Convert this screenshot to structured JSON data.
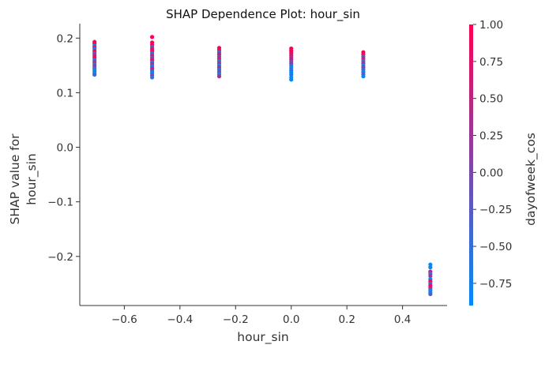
{
  "chart_data": {
    "type": "scatter",
    "title": "SHAP Dependence Plot: hour_sin",
    "xlabel": "hour_sin",
    "ylabel_lines": [
      "SHAP value for",
      "hour_sin"
    ],
    "xlim": [
      -0.76,
      0.56
    ],
    "ylim": [
      -0.29,
      0.225
    ],
    "x_ticks": [
      -0.6,
      -0.4,
      -0.2,
      0.0,
      0.2,
      0.4
    ],
    "x_tick_labels": [
      "−0.6",
      "−0.4",
      "−0.2",
      "0.0",
      "0.2",
      "0.4"
    ],
    "y_ticks": [
      0.2,
      0.1,
      0.0,
      -0.1,
      -0.2
    ],
    "y_tick_labels": [
      "0.2",
      "0.1",
      "0.0",
      "−0.1",
      "−0.2"
    ],
    "grid": false,
    "legend": "none",
    "colorbar": {
      "label": "dayofweek_cos",
      "range": [
        -0.9,
        1.0
      ],
      "ticks": [
        1.0,
        0.75,
        0.5,
        0.25,
        0.0,
        -0.25,
        -0.5,
        -0.75
      ],
      "tick_labels": [
        "1.00",
        "0.75",
        "0.50",
        "0.25",
        "0.00",
        "−0.25",
        "−0.50",
        "−0.75"
      ],
      "colormap": [
        "#008bfb",
        "#ff0052"
      ]
    },
    "point_groups": [
      {
        "x": -0.707,
        "points": [
          {
            "y": 0.193,
            "c": 1.0
          },
          {
            "y": 0.19,
            "c": 0.95
          },
          {
            "y": 0.186,
            "c": -0.85
          },
          {
            "y": 0.183,
            "c": 0.8
          },
          {
            "y": 0.18,
            "c": -0.7
          },
          {
            "y": 0.176,
            "c": 0.95
          },
          {
            "y": 0.172,
            "c": -0.2
          },
          {
            "y": 0.168,
            "c": 0.6
          },
          {
            "y": 0.164,
            "c": 0.9
          },
          {
            "y": 0.16,
            "c": -0.55
          },
          {
            "y": 0.156,
            "c": 0.3
          },
          {
            "y": 0.152,
            "c": -0.4
          },
          {
            "y": 0.148,
            "c": 0.1
          },
          {
            "y": 0.144,
            "c": -0.6
          },
          {
            "y": 0.14,
            "c": -0.75
          },
          {
            "y": 0.136,
            "c": -0.85
          },
          {
            "y": 0.133,
            "c": -0.45
          }
        ]
      },
      {
        "x": -0.5,
        "points": [
          {
            "y": 0.202,
            "c": 1.0
          },
          {
            "y": 0.192,
            "c": 0.9
          },
          {
            "y": 0.188,
            "c": 0.95
          },
          {
            "y": 0.184,
            "c": -0.3
          },
          {
            "y": 0.18,
            "c": 0.7
          },
          {
            "y": 0.176,
            "c": 0.85
          },
          {
            "y": 0.172,
            "c": -0.6
          },
          {
            "y": 0.168,
            "c": 0.5
          },
          {
            "y": 0.164,
            "c": -0.1
          },
          {
            "y": 0.16,
            "c": 0.9
          },
          {
            "y": 0.156,
            "c": -0.45
          },
          {
            "y": 0.152,
            "c": 0.25
          },
          {
            "y": 0.148,
            "c": -0.7
          },
          {
            "y": 0.144,
            "c": 0.6
          },
          {
            "y": 0.14,
            "c": -0.25
          },
          {
            "y": 0.136,
            "c": -0.85
          },
          {
            "y": 0.132,
            "c": 0.0
          },
          {
            "y": 0.128,
            "c": -0.5
          }
        ]
      },
      {
        "x": -0.259,
        "points": [
          {
            "y": 0.182,
            "c": 1.0
          },
          {
            "y": 0.178,
            "c": 0.9
          },
          {
            "y": 0.174,
            "c": -0.35
          },
          {
            "y": 0.17,
            "c": 0.75
          },
          {
            "y": 0.166,
            "c": -0.1
          },
          {
            "y": 0.162,
            "c": 0.55
          },
          {
            "y": 0.158,
            "c": -0.65
          },
          {
            "y": 0.154,
            "c": 0.2
          },
          {
            "y": 0.15,
            "c": -0.8
          },
          {
            "y": 0.146,
            "c": 0.45
          },
          {
            "y": 0.142,
            "c": -0.45
          },
          {
            "y": 0.138,
            "c": -0.2
          },
          {
            "y": 0.134,
            "c": -0.7
          },
          {
            "y": 0.13,
            "c": 0.3
          }
        ]
      },
      {
        "x": 0.0,
        "points": [
          {
            "y": 0.181,
            "c": 1.0
          },
          {
            "y": 0.177,
            "c": 0.85
          },
          {
            "y": 0.173,
            "c": 0.95
          },
          {
            "y": 0.169,
            "c": 0.6
          },
          {
            "y": 0.165,
            "c": 0.3
          },
          {
            "y": 0.161,
            "c": 0.75
          },
          {
            "y": 0.157,
            "c": -0.15
          },
          {
            "y": 0.153,
            "c": 0.1
          },
          {
            "y": 0.149,
            "c": -0.6
          },
          {
            "y": 0.145,
            "c": -0.8
          },
          {
            "y": 0.141,
            "c": -0.5
          },
          {
            "y": 0.137,
            "c": -0.85
          },
          {
            "y": 0.133,
            "c": -0.7
          },
          {
            "y": 0.128,
            "c": -0.85
          },
          {
            "y": 0.124,
            "c": -0.9
          }
        ]
      },
      {
        "x": 0.259,
        "points": [
          {
            "y": 0.174,
            "c": 1.0
          },
          {
            "y": 0.17,
            "c": 0.85
          },
          {
            "y": 0.166,
            "c": -0.2
          },
          {
            "y": 0.162,
            "c": 0.6
          },
          {
            "y": 0.158,
            "c": -0.55
          },
          {
            "y": 0.154,
            "c": 0.35
          },
          {
            "y": 0.15,
            "c": -0.75
          },
          {
            "y": 0.146,
            "c": 0.1
          },
          {
            "y": 0.142,
            "c": -0.4
          },
          {
            "y": 0.138,
            "c": -0.85
          },
          {
            "y": 0.134,
            "c": -0.3
          },
          {
            "y": 0.13,
            "c": -0.8
          }
        ]
      },
      {
        "x": 0.5,
        "points": [
          {
            "y": -0.215,
            "c": -0.9
          },
          {
            "y": -0.22,
            "c": -0.8
          },
          {
            "y": -0.228,
            "c": 0.6
          },
          {
            "y": -0.232,
            "c": -0.5
          },
          {
            "y": -0.236,
            "c": 0.2
          },
          {
            "y": -0.242,
            "c": -0.85
          },
          {
            "y": -0.246,
            "c": 0.9
          },
          {
            "y": -0.25,
            "c": -0.4
          },
          {
            "y": -0.254,
            "c": 1.0
          },
          {
            "y": -0.258,
            "c": 0.4
          },
          {
            "y": -0.262,
            "c": -0.7
          },
          {
            "y": -0.266,
            "c": -0.85
          },
          {
            "y": -0.269,
            "c": -0.3
          }
        ]
      }
    ]
  }
}
